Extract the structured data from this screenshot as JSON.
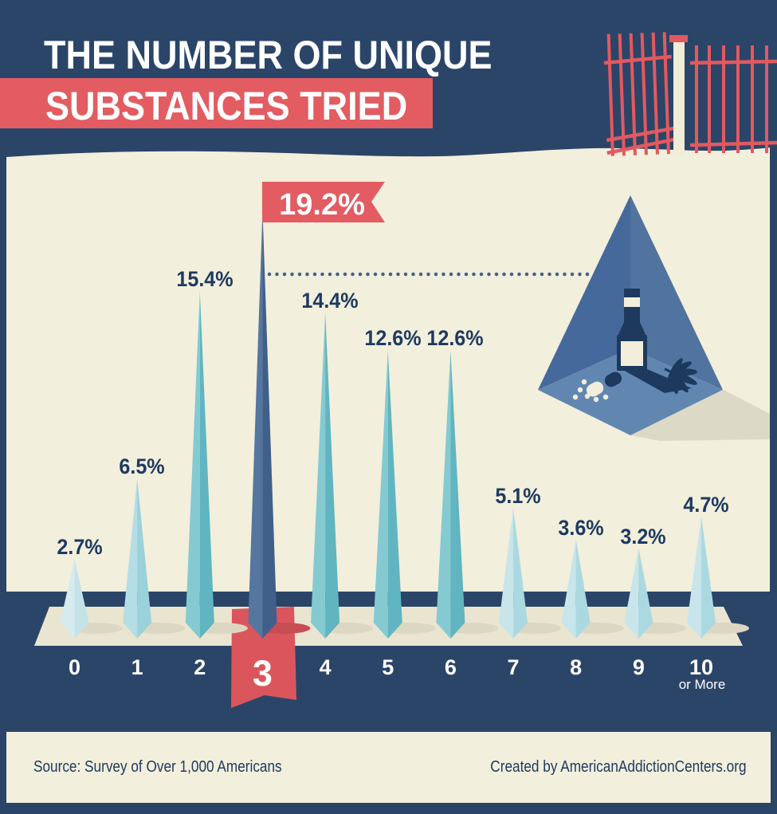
{
  "header": {
    "title_line1": "THE NUMBER OF UNIQUE",
    "title_line2": "SUBSTANCES TRIED"
  },
  "chart_data": {
    "type": "bar",
    "title": "The Number of Unique Substances Tried",
    "categories": [
      "0",
      "1",
      "2",
      "3",
      "4",
      "5",
      "6",
      "7",
      "8",
      "9",
      "10"
    ],
    "last_category_suffix": "or More",
    "values": [
      2.7,
      6.5,
      15.4,
      19.2,
      14.4,
      12.6,
      12.6,
      5.1,
      3.6,
      3.2,
      4.7
    ],
    "labels": [
      "2.7%",
      "6.5%",
      "15.4%",
      "19.2%",
      "14.4%",
      "12.6%",
      "12.6%",
      "5.1%",
      "3.6%",
      "3.2%",
      "4.7%"
    ],
    "unit": "%",
    "ylim": [
      0,
      20
    ],
    "grid": false,
    "legend": false,
    "highlight_index": 3,
    "highlight_label": "19.2%",
    "color_keys": [
      "pale0",
      "pale1",
      "teal",
      "highlight",
      "teal",
      "teal",
      "teal",
      "ice",
      "ice",
      "ice",
      "ice"
    ]
  },
  "illustration": {
    "icons": [
      "spotlight-pyramid-icon",
      "bottle-icon",
      "cannabis-leaf-icon",
      "pill-capsule-icon",
      "pill-dots-icon"
    ]
  },
  "decor": {
    "icons": [
      "fence-icon"
    ]
  },
  "footer": {
    "source": "Source: Survey of Over 1,000 Americans",
    "credit": "Created by AmericanAddictionCenters.org"
  },
  "colors": {
    "navy_bg": "#2b4568",
    "red_accent": "#e25c62",
    "ribbon_red": "#db565c",
    "cream_panel": "#f2efdc",
    "platform": "#e9e5d1",
    "platform_shadow": "#dcd7c3",
    "highlight_shadow": "#c84c54",
    "label_navy": "#1e3a60",
    "dotted_line": "#41618c",
    "white": "#ffffff",
    "spikes": {
      "pale0": {
        "light": "#d7ebee",
        "dark": "#c4e3e9"
      },
      "pale1": {
        "light": "#b5dde5",
        "dark": "#9bd1db"
      },
      "teal": {
        "light": "#85cad1",
        "dark": "#60b5c0"
      },
      "ice": {
        "light": "#c7e5ea",
        "dark": "#abd9e1"
      },
      "highlight": {
        "light": "#55769f",
        "dark": "#40608a"
      }
    }
  }
}
